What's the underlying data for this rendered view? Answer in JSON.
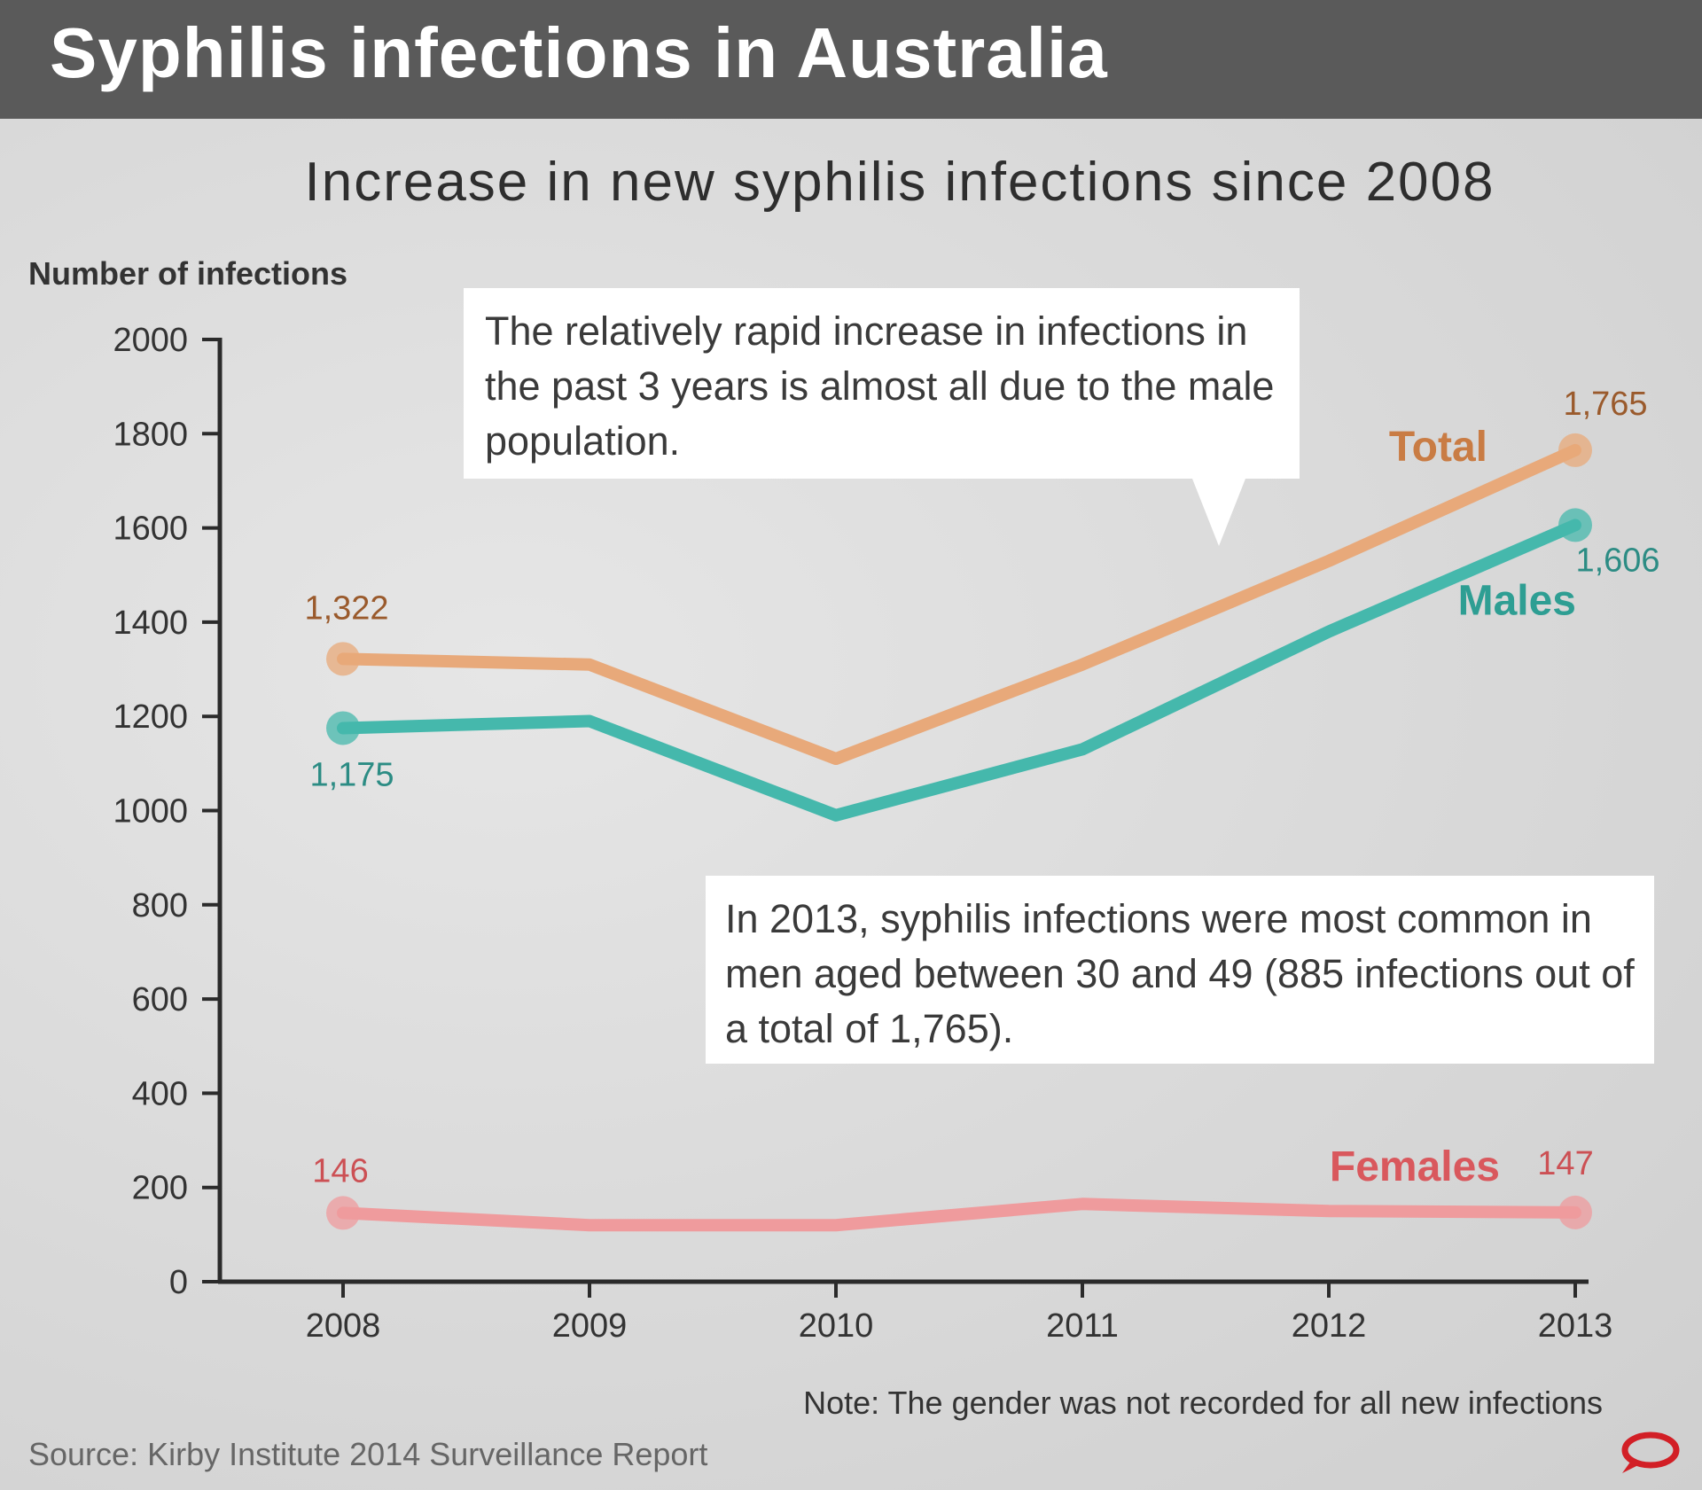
{
  "header": {
    "title": "Syphilis infections in Australia"
  },
  "chart_data": {
    "type": "line",
    "title": "Increase in new syphilis infections since 2008",
    "ylabel": "Number of infections",
    "xlabel": "",
    "categories": [
      "2008",
      "2009",
      "2010",
      "2011",
      "2012",
      "2013"
    ],
    "yticks": [
      "0",
      "200",
      "400",
      "600",
      "800",
      "1000",
      "1200",
      "1400",
      "1600",
      "1800",
      "2000"
    ],
    "ylim": [
      0,
      2000
    ],
    "grid": false,
    "series": [
      {
        "name": "Total",
        "color": "#e8a97a",
        "label_color": "#c97c44",
        "value_color": "#9a5a2c",
        "values": [
          1322,
          1310,
          1110,
          1310,
          1530,
          1765
        ],
        "start_label": "1,322",
        "end_label": "1,765"
      },
      {
        "name": "Males",
        "color": "#45b8ac",
        "label_color": "#2e9e93",
        "value_color": "#2c8c84",
        "values": [
          1175,
          1190,
          990,
          1130,
          1380,
          1606
        ],
        "start_label": "1,175",
        "end_label": "1,606"
      },
      {
        "name": "Females",
        "color": "#ef9b9d",
        "label_color": "#d9585d",
        "value_color": "#cc5054",
        "values": [
          146,
          120,
          120,
          165,
          150,
          147
        ],
        "start_label": "146",
        "end_label": "147"
      }
    ]
  },
  "callouts": {
    "first": "The relatively rapid increase in infections in the past 3 years is almost all due to the male population.",
    "second": "In 2013, syphilis infections were most common in men aged between 30 and 49 (885 infections out of a total of 1,765)."
  },
  "footer": {
    "note": "Note: The gender was not recorded for all new infections",
    "source": "Source: Kirby Institute 2014 Surveillance Report"
  }
}
